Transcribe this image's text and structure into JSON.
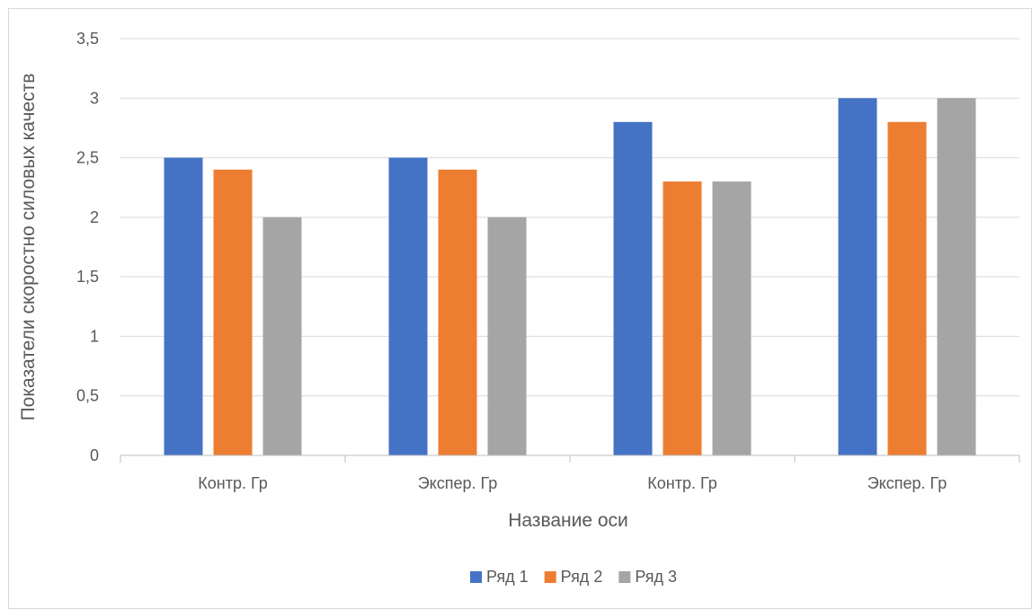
{
  "chart_data": {
    "type": "bar",
    "categories": [
      "Контр. Гр",
      "Экспер. Гр",
      "Контр. Гр",
      "Экспер. Гр"
    ],
    "series": [
      {
        "name": "Ряд 1",
        "values": [
          2.5,
          2.5,
          2.8,
          3.0
        ],
        "color": "#4472C4"
      },
      {
        "name": "Ряд 2",
        "values": [
          2.4,
          2.4,
          2.3,
          2.8
        ],
        "color": "#ED7D31"
      },
      {
        "name": "Ряд 3",
        "values": [
          2.0,
          2.0,
          2.3,
          3.0
        ],
        "color": "#A5A5A5"
      }
    ],
    "xlabel": "Название оси",
    "ylabel": "Показатели скоростно силовых качеств",
    "ylim": [
      0,
      3.5
    ],
    "yticks": [
      "0",
      "0,5",
      "1",
      "1,5",
      "2",
      "2,5",
      "3",
      "3,5"
    ],
    "grid": true,
    "legend_position": "bottom"
  }
}
